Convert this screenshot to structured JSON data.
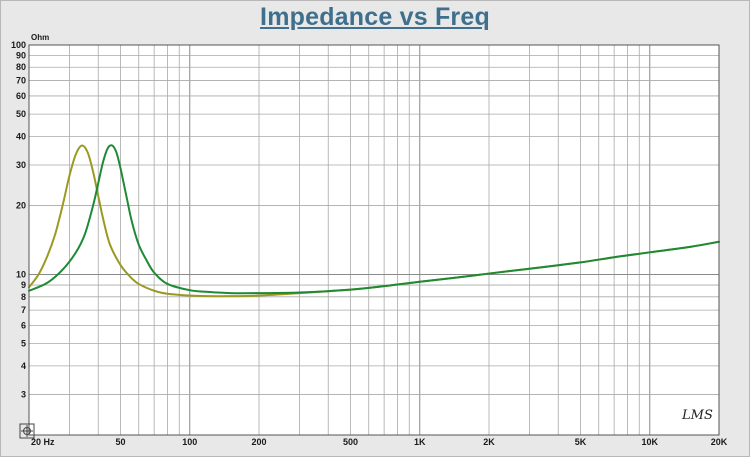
{
  "chart_data": {
    "type": "line",
    "title": "Impedance vs Freq",
    "ylabel_unit": "Ohm",
    "x_scale": "log",
    "y_scale": "log",
    "xlim": [
      20,
      20000
    ],
    "ylim": [
      2,
      100
    ],
    "grid": true,
    "x_tick_labels": [
      {
        "value": 20,
        "label": "20 Hz"
      },
      {
        "value": 50,
        "label": "50"
      },
      {
        "value": 100,
        "label": "100"
      },
      {
        "value": 200,
        "label": "200"
      },
      {
        "value": 500,
        "label": "500"
      },
      {
        "value": 1000,
        "label": "1K"
      },
      {
        "value": 2000,
        "label": "2K"
      },
      {
        "value": 5000,
        "label": "5K"
      },
      {
        "value": 10000,
        "label": "10K"
      },
      {
        "value": 20000,
        "label": "20K"
      }
    ],
    "y_tick_labels": [
      {
        "value": 100,
        "label": "100"
      },
      {
        "value": 90,
        "label": "90"
      },
      {
        "value": 80,
        "label": "80"
      },
      {
        "value": 70,
        "label": "70"
      },
      {
        "value": 60,
        "label": "60"
      },
      {
        "value": 50,
        "label": "50"
      },
      {
        "value": 40,
        "label": "40"
      },
      {
        "value": 30,
        "label": "30"
      },
      {
        "value": 20,
        "label": "20"
      },
      {
        "value": 10,
        "label": "10"
      },
      {
        "value": 9,
        "label": "9"
      },
      {
        "value": 8,
        "label": "8"
      },
      {
        "value": 7,
        "label": "7"
      },
      {
        "value": 6,
        "label": "6"
      },
      {
        "value": 5,
        "label": "5"
      },
      {
        "value": 4,
        "label": "4"
      },
      {
        "value": 3,
        "label": "3"
      }
    ],
    "series": [
      {
        "color": "#9a9a22",
        "points": [
          [
            20,
            8.8
          ],
          [
            22,
            10
          ],
          [
            24,
            12
          ],
          [
            26,
            15
          ],
          [
            28,
            20
          ],
          [
            30,
            27
          ],
          [
            32,
            33.5
          ],
          [
            34,
            36.5
          ],
          [
            36,
            34
          ],
          [
            38,
            28
          ],
          [
            40,
            22
          ],
          [
            42,
            17.5
          ],
          [
            45,
            13.5
          ],
          [
            50,
            11
          ],
          [
            55,
            9.8
          ],
          [
            60,
            9.1
          ],
          [
            70,
            8.5
          ],
          [
            80,
            8.25
          ],
          [
            100,
            8.1
          ],
          [
            120,
            8.05
          ],
          [
            150,
            8.05
          ],
          [
            200,
            8.1
          ],
          [
            300,
            8.3
          ],
          [
            500,
            8.6
          ],
          [
            700,
            8.9
          ],
          [
            1000,
            9.3
          ],
          [
            1500,
            9.75
          ],
          [
            2000,
            10.1
          ],
          [
            3000,
            10.6
          ],
          [
            5000,
            11.3
          ],
          [
            7000,
            11.9
          ],
          [
            10000,
            12.5
          ],
          [
            15000,
            13.2
          ],
          [
            20000,
            13.9
          ]
        ]
      },
      {
        "color": "#1f8a35",
        "points": [
          [
            20,
            8.5
          ],
          [
            24,
            9.2
          ],
          [
            28,
            10.5
          ],
          [
            32,
            12.5
          ],
          [
            35,
            15
          ],
          [
            38,
            20
          ],
          [
            40,
            25
          ],
          [
            42,
            31
          ],
          [
            44,
            35.5
          ],
          [
            46,
            36.5
          ],
          [
            48,
            34
          ],
          [
            50,
            29
          ],
          [
            53,
            22
          ],
          [
            56,
            17
          ],
          [
            60,
            13.5
          ],
          [
            65,
            11.5
          ],
          [
            70,
            10.2
          ],
          [
            80,
            9.1
          ],
          [
            100,
            8.55
          ],
          [
            120,
            8.4
          ],
          [
            150,
            8.3
          ],
          [
            200,
            8.3
          ],
          [
            300,
            8.35
          ],
          [
            500,
            8.6
          ],
          [
            700,
            8.9
          ],
          [
            1000,
            9.3
          ],
          [
            1500,
            9.75
          ],
          [
            2000,
            10.1
          ],
          [
            3000,
            10.6
          ],
          [
            5000,
            11.3
          ],
          [
            7000,
            11.9
          ],
          [
            10000,
            12.5
          ],
          [
            15000,
            13.2
          ],
          [
            20000,
            13.9
          ]
        ]
      }
    ]
  },
  "watermark": "LMS"
}
